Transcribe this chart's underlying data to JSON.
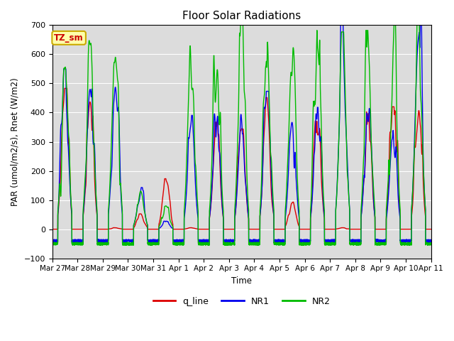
{
  "title": "Floor Solar Radiations",
  "ylabel": "PAR (umol/m2/s), Rnet (W/m2)",
  "xlabel": "Time",
  "ylim": [
    -100,
    700
  ],
  "yticks": [
    -100,
    0,
    100,
    200,
    300,
    400,
    500,
    600,
    700
  ],
  "bg_color": "#dcdcdc",
  "legend_labels": [
    "q_line",
    "NR1",
    "NR2"
  ],
  "legend_colors": [
    "#dd0000",
    "#0000ee",
    "#00bb00"
  ],
  "tz_label": "TZ_sm",
  "tz_box_color": "#ffffaa",
  "tz_text_color": "#cc0000",
  "tz_edge_color": "#ccaa00",
  "n_days": 15,
  "points_per_day": 288,
  "night_NR1": -40,
  "night_NR2": -50,
  "night_q": 0,
  "day_peaks_q": [
    460,
    430,
    5,
    50,
    165,
    5,
    350,
    340,
    430,
    90,
    360,
    5,
    410,
    400,
    420
  ],
  "day_peaks_NR1": [
    500,
    480,
    490,
    130,
    25,
    355,
    370,
    360,
    430,
    370,
    380,
    650,
    385,
    340,
    650
  ],
  "day_peaks_NR2": [
    585,
    620,
    620,
    130,
    80,
    602,
    600,
    640,
    620,
    595,
    620,
    615,
    620,
    645,
    650
  ],
  "tick_labels": [
    "Mar 27",
    "Mar 28",
    "Mar 29",
    "Mar 30",
    "Mar 31",
    "Apr 1",
    "Apr 2",
    "Apr 3",
    "Apr 4",
    "Apr 5",
    "Apr 6",
    "Apr 7",
    "Apr 8",
    "Apr 9",
    "Apr 10",
    "Apr 11"
  ],
  "figsize": [
    6.4,
    4.8
  ],
  "dpi": 100,
  "linewidth": 1.0,
  "grid_color": "#ffffff",
  "grid_lw": 0.8
}
